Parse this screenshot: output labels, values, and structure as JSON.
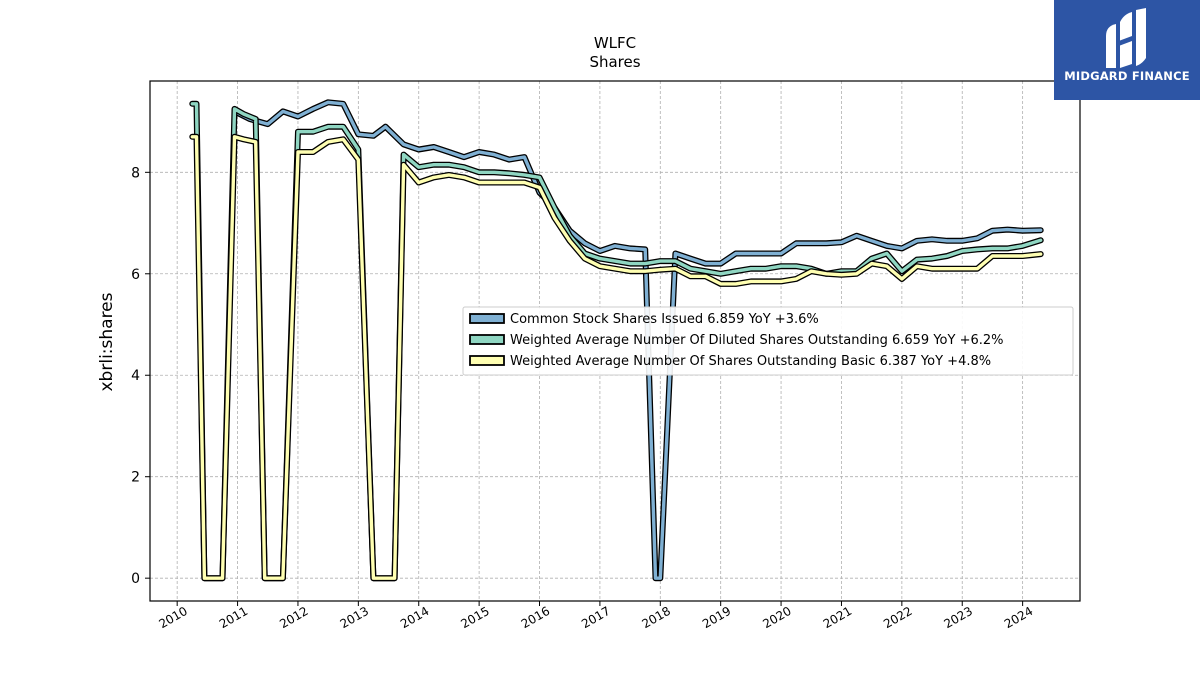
{
  "brand": {
    "name": "MIDGARD FINANCE",
    "bg_color": "#2d55a5"
  },
  "chart_data": {
    "type": "line",
    "title": "WLFC",
    "subtitle": "Shares",
    "ylabel": "xbrli:shares",
    "xlabel": "",
    "xlim": [
      2009.55,
      2024.95
    ],
    "ylim": [
      -0.45,
      9.8
    ],
    "x_ticks": [
      2010,
      2011,
      2012,
      2013,
      2014,
      2015,
      2016,
      2017,
      2018,
      2019,
      2020,
      2021,
      2022,
      2023,
      2024
    ],
    "x_tick_labels": [
      "2010",
      "2011",
      "2012",
      "2013",
      "2014",
      "2015",
      "2016",
      "2017",
      "2018",
      "2019",
      "2020",
      "2021",
      "2022",
      "2023",
      "2024"
    ],
    "y_ticks": [
      0,
      2,
      4,
      6,
      8
    ],
    "y_tick_labels": [
      "0",
      "2",
      "4",
      "6",
      "8"
    ],
    "grid": true,
    "legend_position": "center-right",
    "series": [
      {
        "name": "Common Stock Shares Issued",
        "legend_label": "Common Stock Shares Issued  6.859 YoY +3.6%",
        "color": "#7fb0d3",
        "x": [
          2010.95,
          2011.2,
          2011.5,
          2011.75,
          2012.0,
          2012.25,
          2012.5,
          2012.75,
          2013.0,
          2013.25,
          2013.45,
          2013.75,
          2014.0,
          2014.25,
          2014.5,
          2014.75,
          2015.0,
          2015.25,
          2015.5,
          2015.75,
          2016.0,
          2016.25,
          2016.5,
          2016.75,
          2017.0,
          2017.25,
          2017.5,
          2017.75,
          2017.92,
          2018.0,
          2018.25,
          2018.5,
          2018.75,
          2019.0,
          2019.25,
          2019.5,
          2019.75,
          2020.0,
          2020.25,
          2020.5,
          2020.75,
          2021.0,
          2021.25,
          2021.5,
          2021.75,
          2022.0,
          2022.25,
          2022.5,
          2022.75,
          2023.0,
          2023.25,
          2023.5,
          2023.75,
          2024.0,
          2024.3
        ],
        "y": [
          9.2,
          9.05,
          8.95,
          9.2,
          9.1,
          9.25,
          9.38,
          9.35,
          8.75,
          8.72,
          8.9,
          8.55,
          8.45,
          8.5,
          8.4,
          8.3,
          8.4,
          8.35,
          8.25,
          8.3,
          7.6,
          7.3,
          6.85,
          6.6,
          6.45,
          6.55,
          6.5,
          6.48,
          0.0,
          0.0,
          6.4,
          6.3,
          6.2,
          6.2,
          6.4,
          6.4,
          6.4,
          6.4,
          6.6,
          6.6,
          6.6,
          6.62,
          6.75,
          6.65,
          6.55,
          6.5,
          6.65,
          6.68,
          6.65,
          6.65,
          6.7,
          6.85,
          6.87,
          6.85,
          6.859
        ]
      },
      {
        "name": "Weighted Average Number Of Diluted Shares Outstanding",
        "legend_label": "Weighted Average Number Of Diluted Shares Outstanding  6.659 YoY +6.2%",
        "color": "#8fd6c2",
        "x": [
          2010.25,
          2010.32,
          2010.45,
          2010.6,
          2010.75,
          2010.95,
          2011.1,
          2011.3,
          2011.45,
          2011.6,
          2011.75,
          2012.0,
          2012.25,
          2012.5,
          2012.75,
          2013.0,
          2013.25,
          2013.4,
          2013.6,
          2013.75,
          2014.0,
          2014.25,
          2014.5,
          2014.75,
          2015.0,
          2015.25,
          2015.5,
          2015.75,
          2016.0,
          2016.25,
          2016.5,
          2016.75,
          2017.0,
          2017.25,
          2017.5,
          2017.75,
          2018.0,
          2018.25,
          2018.5,
          2018.75,
          2019.0,
          2019.25,
          2019.5,
          2019.75,
          2020.0,
          2020.25,
          2020.5,
          2020.75,
          2021.0,
          2021.25,
          2021.5,
          2021.75,
          2022.0,
          2022.25,
          2022.5,
          2022.75,
          2023.0,
          2023.25,
          2023.5,
          2023.75,
          2024.0,
          2024.3
        ],
        "y": [
          9.35,
          9.35,
          0.0,
          0.0,
          0.0,
          9.25,
          9.15,
          9.05,
          0.0,
          0.0,
          0.0,
          8.8,
          8.8,
          8.9,
          8.9,
          8.45,
          0.0,
          0.0,
          0.0,
          8.35,
          8.1,
          8.15,
          8.15,
          8.1,
          8.0,
          8.0,
          7.98,
          7.95,
          7.9,
          7.3,
          6.75,
          6.4,
          6.3,
          6.25,
          6.2,
          6.2,
          6.25,
          6.25,
          6.1,
          6.05,
          6.0,
          6.05,
          6.1,
          6.1,
          6.15,
          6.15,
          6.1,
          6.0,
          6.05,
          6.05,
          6.3,
          6.4,
          6.05,
          6.28,
          6.3,
          6.35,
          6.45,
          6.48,
          6.5,
          6.5,
          6.55,
          6.659
        ]
      },
      {
        "name": "Weighted Average Number Of Shares Outstanding Basic",
        "legend_label": "Weighted Average Number Of Shares Outstanding Basic  6.387 YoY +4.8%",
        "color": "#ffffb2",
        "x": [
          2010.25,
          2010.32,
          2010.45,
          2010.6,
          2010.75,
          2010.95,
          2011.1,
          2011.3,
          2011.45,
          2011.6,
          2011.75,
          2012.0,
          2012.25,
          2012.5,
          2012.75,
          2013.0,
          2013.25,
          2013.4,
          2013.6,
          2013.75,
          2014.0,
          2014.25,
          2014.5,
          2014.75,
          2015.0,
          2015.25,
          2015.5,
          2015.75,
          2016.0,
          2016.25,
          2016.5,
          2016.75,
          2017.0,
          2017.25,
          2017.5,
          2017.75,
          2018.0,
          2018.25,
          2018.5,
          2018.75,
          2019.0,
          2019.25,
          2019.5,
          2019.75,
          2020.0,
          2020.25,
          2020.5,
          2020.75,
          2021.0,
          2021.25,
          2021.5,
          2021.75,
          2022.0,
          2022.25,
          2022.5,
          2022.75,
          2023.0,
          2023.25,
          2023.5,
          2023.75,
          2024.0,
          2024.3
        ],
        "y": [
          8.7,
          8.7,
          0.0,
          0.0,
          0.0,
          8.7,
          8.65,
          8.6,
          0.0,
          0.0,
          0.0,
          8.4,
          8.4,
          8.6,
          8.65,
          8.25,
          0.0,
          0.0,
          0.0,
          8.15,
          7.8,
          7.9,
          7.95,
          7.9,
          7.8,
          7.8,
          7.8,
          7.8,
          7.7,
          7.1,
          6.65,
          6.3,
          6.15,
          6.1,
          6.05,
          6.05,
          6.08,
          6.1,
          5.95,
          5.95,
          5.8,
          5.8,
          5.85,
          5.85,
          5.85,
          5.9,
          6.05,
          6.0,
          5.98,
          6.0,
          6.2,
          6.15,
          5.9,
          6.15,
          6.1,
          6.1,
          6.1,
          6.1,
          6.35,
          6.35,
          6.35,
          6.387
        ]
      }
    ]
  }
}
